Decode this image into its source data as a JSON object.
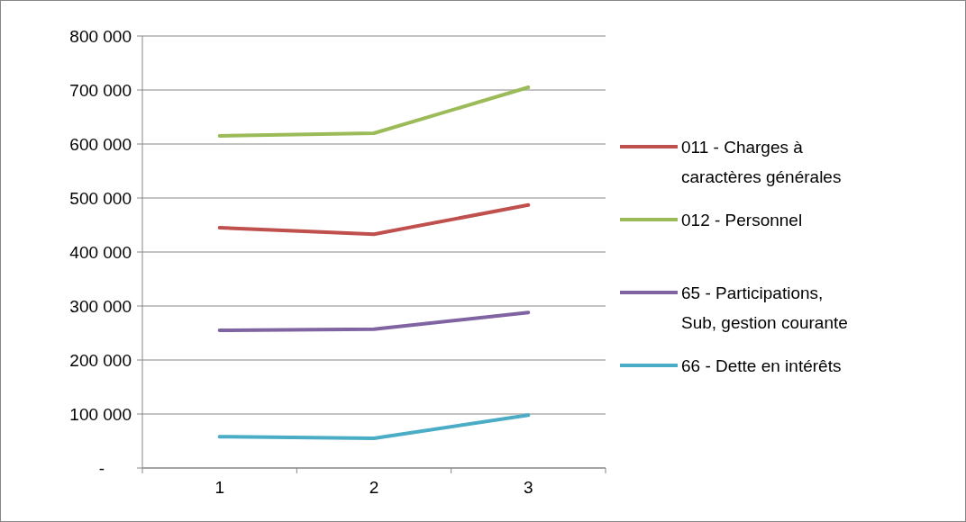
{
  "chart_data": {
    "type": "line",
    "categories": [
      "1",
      "2",
      "3"
    ],
    "series": [
      {
        "name": "011 - Charges à caractères générales",
        "color": "#c0504d",
        "values": [
          445000,
          433000,
          487000
        ]
      },
      {
        "name": "012 - Personnel",
        "color": "#9bbb59",
        "values": [
          615000,
          620000,
          705000
        ]
      },
      {
        "name": "65 - Participations, Sub, gestion courante",
        "color": "#8064a2",
        "values": [
          255000,
          257000,
          288000
        ]
      },
      {
        "name": "66 - Dette en intérêts",
        "color": "#4bacc6",
        "values": [
          58000,
          55000,
          98000
        ]
      }
    ],
    "ylim": [
      0,
      800000
    ],
    "yticks": [
      {
        "value": 0,
        "label": "-"
      },
      {
        "value": 100000,
        "label": "100 000"
      },
      {
        "value": 200000,
        "label": "200 000"
      },
      {
        "value": 300000,
        "label": "300 000"
      },
      {
        "value": 400000,
        "label": "400 000"
      },
      {
        "value": 500000,
        "label": "500 000"
      },
      {
        "value": 600000,
        "label": "600 000"
      },
      {
        "value": 700000,
        "label": "700 000"
      },
      {
        "value": 800000,
        "label": "800 000"
      }
    ],
    "grid": "y",
    "legend": "right",
    "marker": "none",
    "line_style": "solid"
  }
}
